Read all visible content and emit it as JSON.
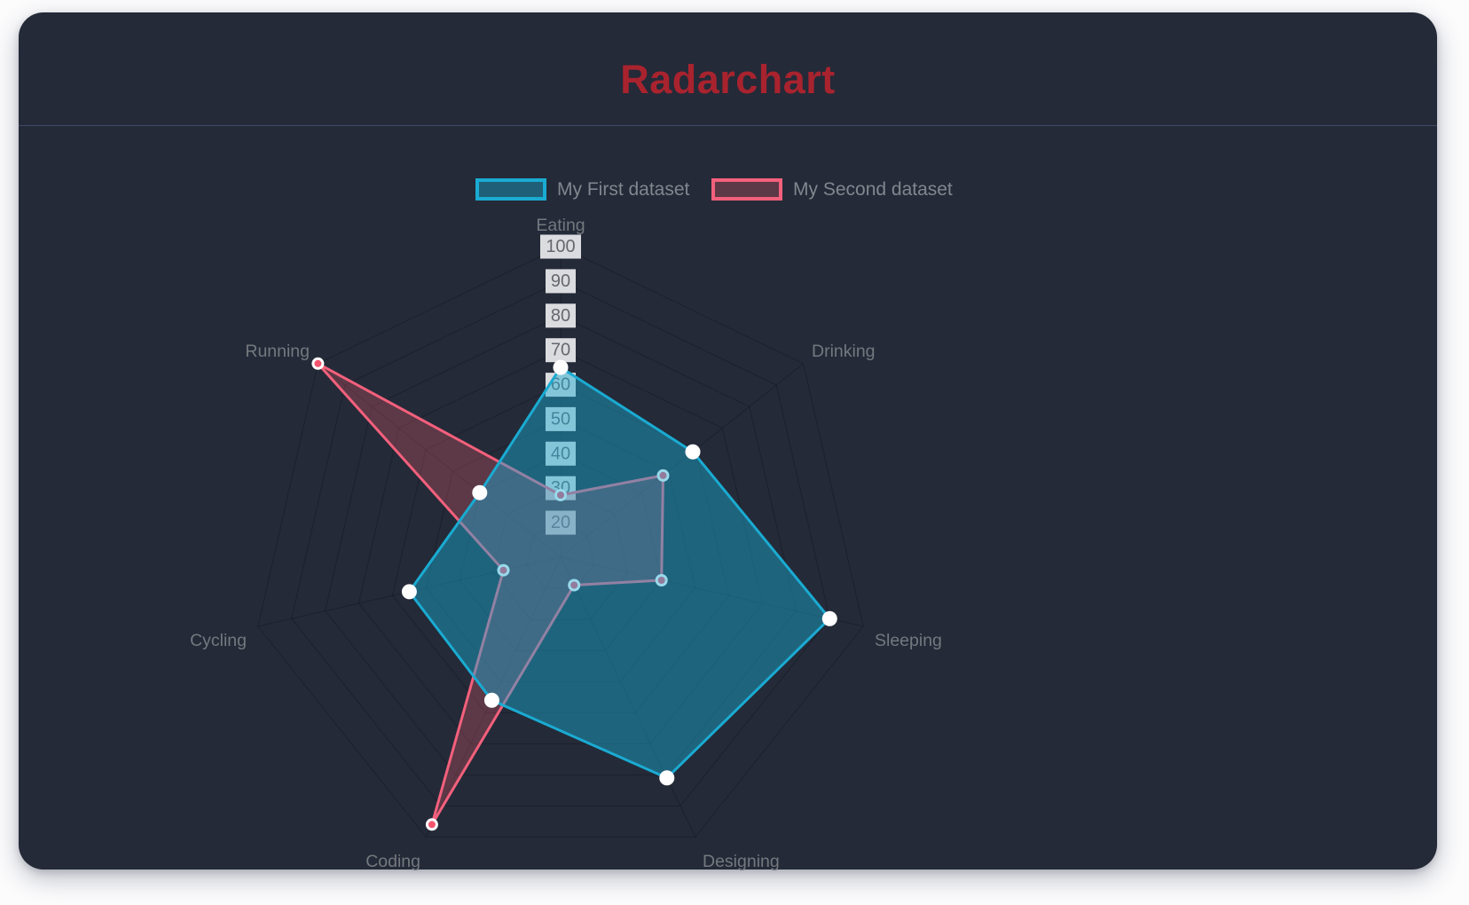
{
  "header": {
    "title": "Radarchart",
    "title_color": "#a8232e"
  },
  "legend": {
    "position": "top",
    "items": [
      {
        "label": "My First dataset",
        "border": "#1aabd2",
        "fill": "rgba(26,171,210,0.42)"
      },
      {
        "label": "My Second dataset",
        "border": "#f4607c",
        "fill": "rgba(240,95,110,0.28)"
      }
    ]
  },
  "chart_data": {
    "type": "radar",
    "title": "Radarchart",
    "categories": [
      "Eating",
      "Drinking",
      "Sleeping",
      "Designing",
      "Coding",
      "Cycling",
      "Running"
    ],
    "series": [
      {
        "name": "My First dataset",
        "values": [
          65,
          59,
          90,
          81,
          56,
          55,
          40
        ],
        "border_color": "#1aabd2",
        "fill_color": "rgba(26,171,210,0.45)",
        "point_color": "#ffffff",
        "point_border": "#ffffff",
        "point_radius": 7.5,
        "point_border_width": 2,
        "line_width": 3
      },
      {
        "name": "My Second dataset",
        "values": [
          28,
          48,
          40,
          19,
          96,
          27,
          100
        ],
        "border_color": "#f4607c",
        "fill_color": "rgba(240,95,110,0.28)",
        "point_color": "#f4546e",
        "point_border": "#ffffff",
        "point_radius": 5.5,
        "point_border_width": 3,
        "line_width": 3
      }
    ],
    "scale": {
      "min": 10,
      "max": 100,
      "step": 10,
      "visible_tick_labels": [
        "20",
        "30",
        "40",
        "50",
        "60",
        "70",
        "80",
        "90",
        "100"
      ],
      "tick_color": "#65686f",
      "tick_backdrop": "rgba(255,255,255,0.84)"
    },
    "grid": {
      "shape": "polygon",
      "rings": 9,
      "color": "rgba(0,0,0,0.22)"
    },
    "axis_label_color": "#74787e",
    "legend_position": "top"
  }
}
